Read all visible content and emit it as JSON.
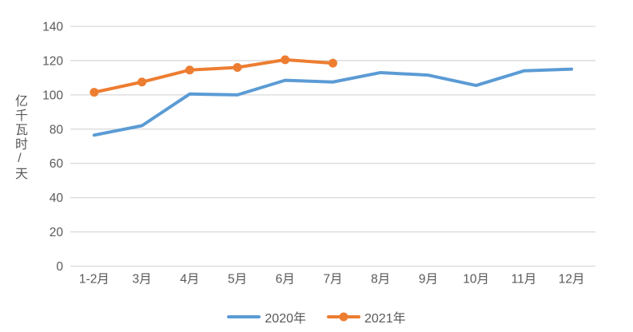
{
  "styles": {
    "background": "#ffffff",
    "grid_color": "#d9d9d9",
    "text_color": "#595959",
    "series_blue": "#5b9bd5",
    "series_orange": "#ed7d31"
  },
  "chart_data": {
    "type": "line",
    "title": "",
    "ylabel": "亿千瓦时/天",
    "xlabel": "",
    "ylim": [
      0,
      140
    ],
    "yticks": [
      0,
      20,
      40,
      60,
      80,
      100,
      120,
      140
    ],
    "grid": "horizontal",
    "legend_position": "bottom-center",
    "categories": [
      "1-2月",
      "3月",
      "4月",
      "5月",
      "6月",
      "7月",
      "8月",
      "9月",
      "10月",
      "11月",
      "12月"
    ],
    "series": [
      {
        "name": "2020年",
        "color": "#5b9bd5",
        "marker": false,
        "line_width": 4,
        "values": [
          76.5,
          82,
          100.5,
          100,
          108.5,
          107.5,
          113,
          111.5,
          105.5,
          114,
          115
        ]
      },
      {
        "name": "2021年",
        "color": "#ed7d31",
        "marker": true,
        "marker_radius": 5.5,
        "line_width": 4,
        "values": [
          101.5,
          107.5,
          114.5,
          116,
          120.5,
          118.5
        ]
      }
    ]
  }
}
